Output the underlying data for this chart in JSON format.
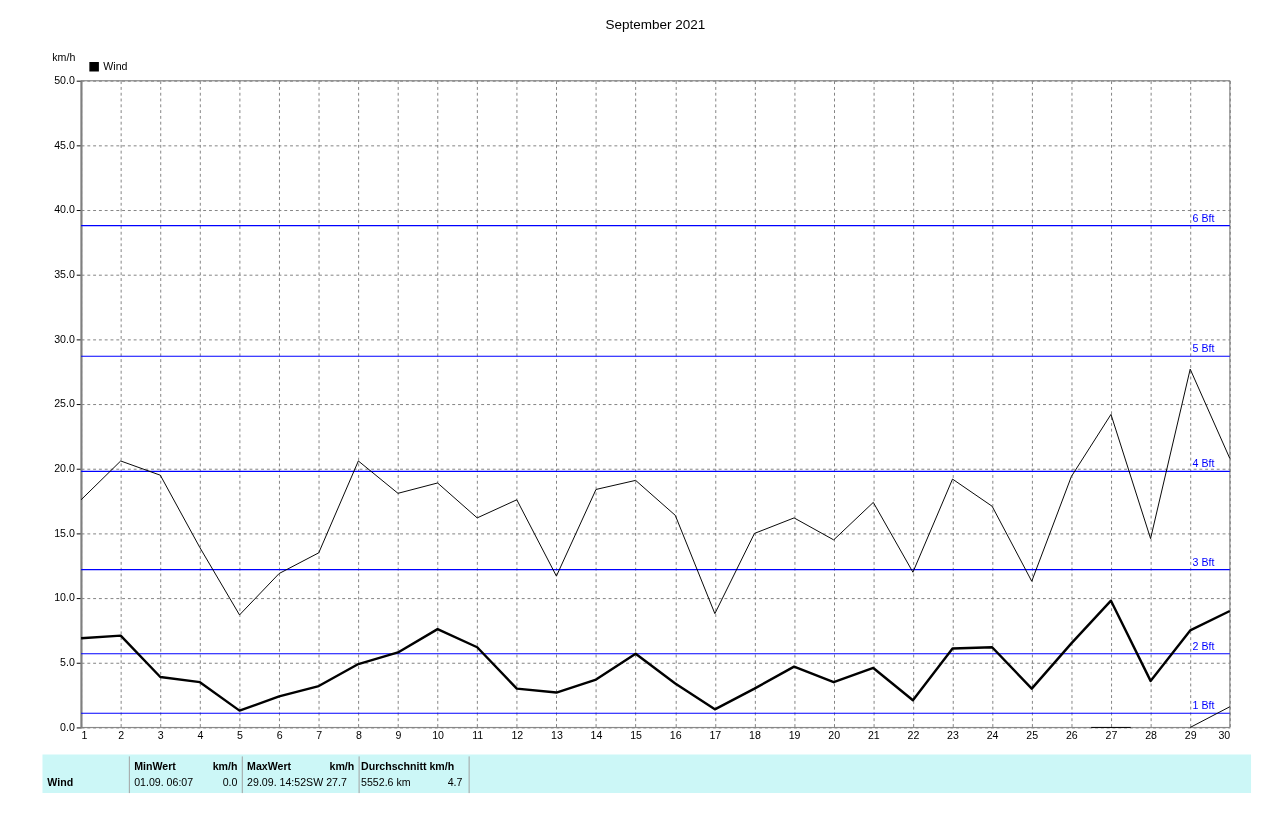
{
  "chart_data": {
    "type": "line",
    "title": "September 2021",
    "ylabel": "km/h",
    "x": [
      1,
      2,
      3,
      4,
      5,
      6,
      7,
      8,
      9,
      10,
      11,
      12,
      13,
      14,
      15,
      16,
      17,
      18,
      19,
      20,
      21,
      22,
      23,
      24,
      25,
      26,
      27,
      28,
      29,
      30
    ],
    "series": [
      {
        "color": "#000000",
        "values": [
          17.6,
          20.6,
          19.5,
          13.9,
          8.7,
          11.9,
          13.5,
          20.6,
          18.1,
          18.9,
          16.2,
          17.6,
          11.7,
          18.4,
          19.1,
          16.4,
          8.8,
          15.0,
          16.2,
          14.5,
          17.4,
          12.0,
          19.2,
          17.1,
          11.3,
          19.4,
          24.2,
          14.6,
          27.7,
          20.8
        ]
      },
      {
        "name": "Wind",
        "color": "#000000",
        "values": [
          6.9,
          7.1,
          3.9,
          3.5,
          1.3,
          2.4,
          3.2,
          4.9,
          5.8,
          7.6,
          6.2,
          3.0,
          2.7,
          3.7,
          5.7,
          3.4,
          1.4,
          3.0,
          4.7,
          3.5,
          4.6,
          2.1,
          6.1,
          6.2,
          3.0,
          6.5,
          9.8,
          3.6,
          7.5,
          9.0
        ]
      },
      {
        "color": "#000000",
        "x": [
          26.5,
          27.5,
          28,
          29,
          30
        ],
        "values": [
          0,
          0,
          null,
          0,
          1.6
        ]
      }
    ],
    "xlim": [
      1,
      30
    ],
    "xticks": [
      1,
      2,
      3,
      4,
      5,
      6,
      7,
      8,
      9,
      10,
      11,
      12,
      13,
      14,
      15,
      16,
      17,
      18,
      19,
      20,
      21,
      22,
      23,
      24,
      25,
      26,
      27,
      28,
      29,
      30
    ],
    "ylim": [
      0,
      50
    ],
    "yticks": [
      {
        "value": 0,
        "label": "0.0"
      },
      {
        "value": 5,
        "label": "5.0"
      },
      {
        "value": 10,
        "label": "10.0"
      },
      {
        "value": 15,
        "label": "15.0"
      },
      {
        "value": 20,
        "label": "20.0"
      },
      {
        "value": 25,
        "label": "25.0"
      },
      {
        "value": 30,
        "label": "30.0"
      },
      {
        "value": 35,
        "label": "35.0"
      },
      {
        "value": 40,
        "label": "40.0"
      },
      {
        "value": 45,
        "label": "45.0"
      },
      {
        "value": 50,
        "label": "50.0"
      }
    ],
    "ref_lines": [
      {
        "axis": "y",
        "value": 1.1,
        "label": "1 Bft",
        "color": "#0000ff"
      },
      {
        "axis": "y",
        "value": 5.7,
        "label": "2 Bft",
        "color": "#0000ff"
      },
      {
        "axis": "y",
        "value": 12.2,
        "label": "3 Bft",
        "color": "#0000ff"
      },
      {
        "axis": "y",
        "value": 19.8,
        "label": "4 Bft",
        "color": "#0000ff"
      },
      {
        "axis": "y",
        "value": 28.7,
        "label": "5 Bft",
        "color": "#0000ff"
      },
      {
        "axis": "y",
        "value": 38.8,
        "label": "6 Bft",
        "color": "#0000ff"
      }
    ],
    "annotations": [
      "MinWert",
      "km/h",
      "MaxWert",
      "km/h",
      "Durchschnitt km/h",
      "Wind",
      "01.09.  06:07",
      "0.0",
      "29.09.  14:52SW 27.7",
      "5552.6 km",
      "4.7"
    ],
    "grid": true,
    "legend": "top left",
    "marker": "none",
    "line_style": "solid"
  }
}
